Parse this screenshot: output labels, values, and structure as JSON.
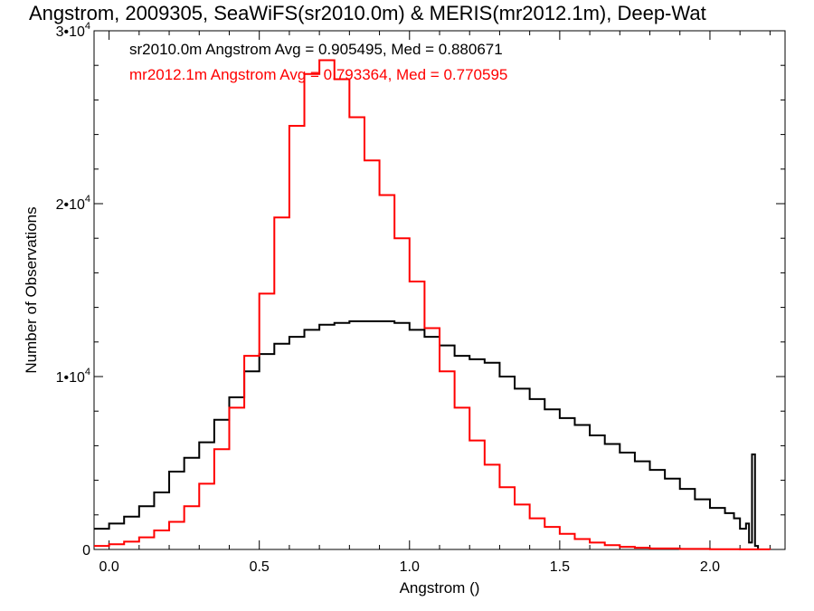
{
  "title": "Angstrom, 2009305, SeaWiFS(sr2010.0m) & MERIS(mr2012.1m), Deep-Wat",
  "chart_data": {
    "type": "line",
    "xlabel": "Angstrom ()",
    "ylabel": "Number of Observations",
    "xlim": [
      -0.05,
      2.25
    ],
    "ylim": [
      0,
      30000
    ],
    "x_ticks": [
      {
        "value": 0.0,
        "label": "0.0"
      },
      {
        "value": 0.5,
        "label": "0.5"
      },
      {
        "value": 1.0,
        "label": "1.0"
      },
      {
        "value": 1.5,
        "label": "1.5"
      },
      {
        "value": 2.0,
        "label": "2.0"
      }
    ],
    "y_ticks": [
      {
        "value": 0,
        "label": "0"
      },
      {
        "value": 10000,
        "label": "1•10",
        "sup": "4"
      },
      {
        "value": 20000,
        "label": "2•10",
        "sup": "4"
      },
      {
        "value": 30000,
        "label": "3•10",
        "sup": "4"
      }
    ],
    "annotations": [
      {
        "text": "sr2010.0m Angstrom Avg = 0.905495, Med = 0.880671",
        "color": "#000000"
      },
      {
        "text": "mr2012.1m Angstrom Avg = 0.793364, Med = 0.770595",
        "color": "#ff0000"
      }
    ],
    "grid": false,
    "series": [
      {
        "color": "#000000",
        "x": [
          -0.05,
          0.0,
          0.05,
          0.1,
          0.15,
          0.2,
          0.25,
          0.3,
          0.35,
          0.4,
          0.45,
          0.5,
          0.55,
          0.6,
          0.65,
          0.7,
          0.75,
          0.8,
          0.85,
          0.9,
          0.95,
          1.0,
          1.05,
          1.1,
          1.15,
          1.2,
          1.25,
          1.3,
          1.35,
          1.4,
          1.45,
          1.5,
          1.55,
          1.6,
          1.65,
          1.7,
          1.75,
          1.8,
          1.85,
          1.9,
          1.95,
          2.0,
          2.05,
          2.08,
          2.1,
          2.12,
          2.13,
          2.14,
          2.15,
          2.16
        ],
        "y": [
          1200,
          1500,
          1900,
          2500,
          3300,
          4500,
          5300,
          6200,
          7500,
          8800,
          10300,
          11300,
          11900,
          12300,
          12700,
          13000,
          13100,
          13200,
          13200,
          13200,
          13100,
          12700,
          12300,
          11800,
          11200,
          11000,
          10800,
          10000,
          9300,
          8700,
          8100,
          7600,
          7200,
          6600,
          6100,
          5600,
          5100,
          4600,
          4100,
          3500,
          2900,
          2400,
          2100,
          1800,
          1200,
          1500,
          400,
          5500,
          200,
          0
        ]
      },
      {
        "color": "#ff0000",
        "x": [
          -0.05,
          0.0,
          0.05,
          0.1,
          0.15,
          0.2,
          0.25,
          0.3,
          0.35,
          0.4,
          0.45,
          0.5,
          0.55,
          0.6,
          0.65,
          0.7,
          0.75,
          0.8,
          0.85,
          0.9,
          0.95,
          1.0,
          1.05,
          1.1,
          1.15,
          1.2,
          1.25,
          1.3,
          1.35,
          1.4,
          1.45,
          1.5,
          1.55,
          1.6,
          1.65,
          1.7,
          1.75,
          1.8,
          1.9,
          2.0,
          2.1,
          2.2
        ],
        "y": [
          200,
          300,
          450,
          700,
          1100,
          1600,
          2500,
          3800,
          5800,
          8200,
          11200,
          14800,
          19200,
          24500,
          27500,
          28300,
          27200,
          25000,
          22500,
          20500,
          18000,
          15500,
          12800,
          10300,
          8200,
          6300,
          4900,
          3600,
          2600,
          1800,
          1300,
          900,
          600,
          400,
          250,
          150,
          100,
          60,
          30,
          10,
          5,
          0
        ]
      }
    ]
  }
}
